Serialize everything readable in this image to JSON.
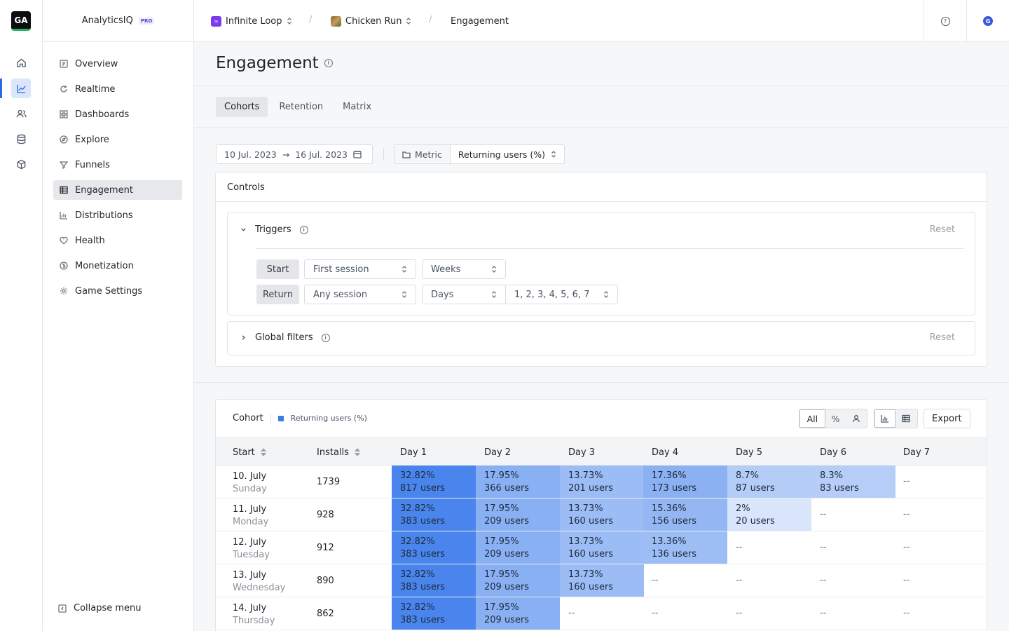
{
  "app": {
    "logo_text": "GA",
    "name": "AnalyticsIQ",
    "plan_badge": "PRO"
  },
  "rail": [
    {
      "name": "home-icon"
    },
    {
      "name": "chart-line-icon",
      "active": true
    },
    {
      "name": "users-icon"
    },
    {
      "name": "database-icon"
    },
    {
      "name": "cube-icon"
    }
  ],
  "sidebar": {
    "items": [
      {
        "label": "Overview",
        "icon": "overview-icon"
      },
      {
        "label": "Realtime",
        "icon": "refresh-icon"
      },
      {
        "label": "Dashboards",
        "icon": "grid-icon"
      },
      {
        "label": "Explore",
        "icon": "compass-icon"
      },
      {
        "label": "Funnels",
        "icon": "funnel-icon"
      },
      {
        "label": "Engagement",
        "icon": "table-icon",
        "active": true
      },
      {
        "label": "Distributions",
        "icon": "bar-chart-icon"
      },
      {
        "label": "Health",
        "icon": "heart-icon"
      },
      {
        "label": "Monetization",
        "icon": "coin-icon"
      },
      {
        "label": "Game Settings",
        "icon": "gear-icon"
      }
    ],
    "collapse_label": "Collapse menu"
  },
  "breadcrumb": {
    "org": "Infinite Loop",
    "org_badge": "∞",
    "game": "Chicken Run",
    "page": "Engagement",
    "separator": "/"
  },
  "topbar": {
    "help_icon": "?",
    "avatar_letter": "G"
  },
  "page": {
    "title": "Engagement"
  },
  "tabs": [
    {
      "label": "Cohorts",
      "active": true
    },
    {
      "label": "Retention"
    },
    {
      "label": "Matrix"
    }
  ],
  "filters": {
    "date_from": "10 Jul. 2023",
    "arrow": "→",
    "date_to": "16 Jul. 2023",
    "metric_label": "Metric",
    "metric_value": "Returning users (%)"
  },
  "controls": {
    "title": "Controls",
    "triggers": {
      "title": "Triggers",
      "reset": "Reset",
      "start_label": "Start",
      "start_event": "First session",
      "start_period": "Weeks",
      "return_label": "Return",
      "return_event": "Any session",
      "return_period": "Days",
      "return_days": "1, 2, 3, 4, 5, 6, 7"
    },
    "global_filters": {
      "title": "Global filters",
      "reset": "Reset"
    }
  },
  "cohort": {
    "title": "Cohort",
    "legend": "Returning users (%)",
    "view_all": "All",
    "view_pct": "%",
    "export": "Export",
    "headers": {
      "start": "Start",
      "installs": "Installs",
      "days": [
        "Day 1",
        "Day 2",
        "Day 3",
        "Day 4",
        "Day 5",
        "Day 6",
        "Day 7"
      ]
    },
    "empty": "--",
    "rows": [
      {
        "date": "10. July",
        "weekday": "Sunday",
        "installs": "1739",
        "days": [
          [
            "32.82%",
            "817 users",
            0.3282
          ],
          [
            "17.95%",
            "366 users",
            0.1795
          ],
          [
            "13.73%",
            "201 users",
            0.1373
          ],
          [
            "17.36%",
            "173 users",
            0.1736
          ],
          [
            "8.7%",
            "87 users",
            0.087
          ],
          [
            "8.3%",
            "83 users",
            0.083
          ],
          null
        ]
      },
      {
        "date": "11. July",
        "weekday": "Monday",
        "installs": "928",
        "days": [
          [
            "32.82%",
            "383 users",
            0.3282
          ],
          [
            "17.95%",
            "209 users",
            0.1795
          ],
          [
            "13.73%",
            "160 users",
            0.1373
          ],
          [
            "15.36%",
            "156 users",
            0.1536
          ],
          [
            "2%",
            "20 users",
            0.02
          ],
          null,
          null
        ]
      },
      {
        "date": "12. July",
        "weekday": "Tuesday",
        "installs": "912",
        "days": [
          [
            "32.82%",
            "383 users",
            0.3282
          ],
          [
            "17.95%",
            "209 users",
            0.1795
          ],
          [
            "13.73%",
            "160 users",
            0.1373
          ],
          [
            "13.36%",
            "136 users",
            0.1336
          ],
          null,
          null,
          null
        ]
      },
      {
        "date": "13. July",
        "weekday": "Wednesday",
        "installs": "890",
        "days": [
          [
            "32.82%",
            "383 users",
            0.3282
          ],
          [
            "17.95%",
            "209 users",
            0.1795
          ],
          [
            "13.73%",
            "160 users",
            0.1373
          ],
          null,
          null,
          null,
          null
        ]
      },
      {
        "date": "14. July",
        "weekday": "Thursday",
        "installs": "862",
        "days": [
          [
            "32.82%",
            "383 users",
            0.3282
          ],
          [
            "17.95%",
            "209 users",
            0.1795
          ],
          null,
          null,
          null,
          null,
          null
        ]
      }
    ]
  }
}
